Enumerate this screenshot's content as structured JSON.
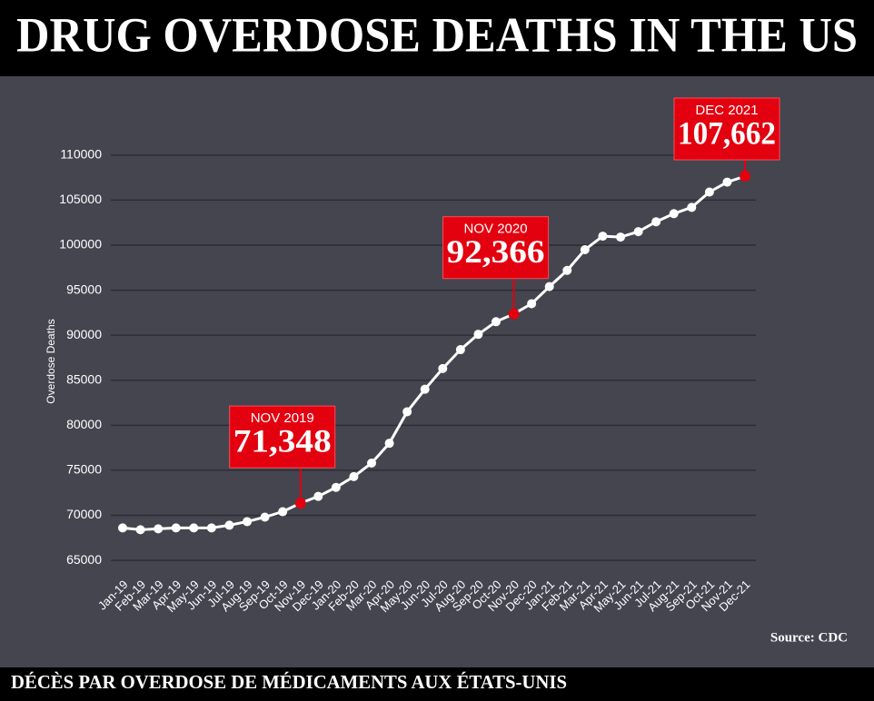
{
  "chart_data": {
    "type": "line",
    "title": "DRUG OVERDOSE DEATHS IN THE US",
    "subtitle": "DÉCÈS PAR OVERDOSE DE MÉDICAMENTS AUX ÉTATS-UNIS",
    "source": "Source: CDC",
    "y_label": "Overdose Deaths",
    "categories": [
      "Jan-19",
      "Feb-19",
      "Mar-19",
      "Apr-19",
      "May-19",
      "Jun-19",
      "Jul-19",
      "Aug-19",
      "Sep-19",
      "Oct-19",
      "Nov-19",
      "Dec-19",
      "Jan-20",
      "Feb-20",
      "Mar-20",
      "Apr-20",
      "May-20",
      "Jun-20",
      "Jul-20",
      "Aug-20",
      "Sep-20",
      "Oct-20",
      "Nov-20",
      "Dec-20",
      "Jan-21",
      "Feb-21",
      "Mar-21",
      "Apr-21",
      "May-21",
      "Jun-21",
      "Jul-21",
      "Aug-21",
      "Sep-21",
      "Oct-21",
      "Nov-21",
      "Dec-21"
    ],
    "values": [
      68600,
      68400,
      68500,
      68600,
      68600,
      68600,
      68900,
      69300,
      69800,
      70400,
      71348,
      72100,
      73100,
      74300,
      75800,
      78000,
      81500,
      84000,
      86300,
      88400,
      90100,
      91500,
      92366,
      93500,
      95400,
      97200,
      99500,
      101000,
      100900,
      101500,
      102600,
      103500,
      104200,
      105900,
      107000,
      107662
    ],
    "value_labels": [
      null,
      null,
      null,
      null,
      null,
      null,
      null,
      null,
      null,
      null,
      "71,348",
      null,
      null,
      null,
      null,
      null,
      null,
      null,
      null,
      null,
      null,
      null,
      "92,366",
      null,
      null,
      null,
      null,
      null,
      null,
      null,
      null,
      null,
      null,
      null,
      null,
      "107,662"
    ],
    "callout_titles": [
      null,
      null,
      null,
      null,
      null,
      null,
      null,
      null,
      null,
      null,
      "NOV 2019",
      null,
      null,
      null,
      null,
      null,
      null,
      null,
      null,
      null,
      null,
      null,
      "NOV 2020",
      null,
      null,
      null,
      null,
      null,
      null,
      null,
      null,
      null,
      null,
      null,
      null,
      "DEC 2021"
    ],
    "color": "#ffffff",
    "highlight_color": "#e3000f",
    "ylim": [
      64000,
      112000
    ],
    "yticks": [
      65000,
      70000,
      75000,
      80000,
      85000,
      90000,
      95000,
      100000,
      105000,
      110000
    ],
    "grid": true
  }
}
